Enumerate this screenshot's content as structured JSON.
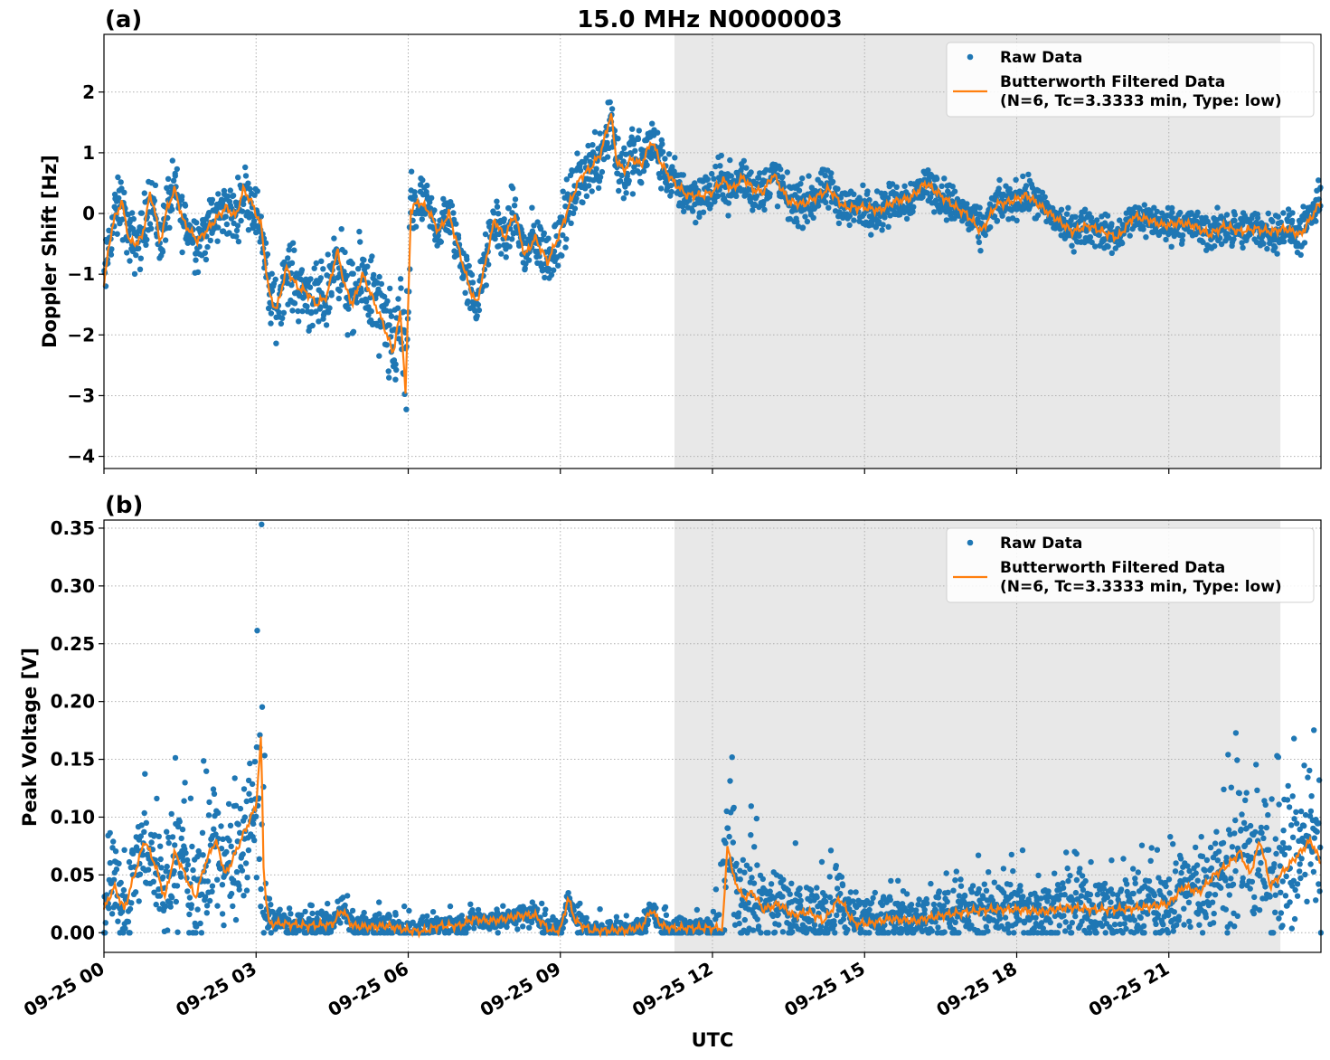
{
  "figure": {
    "suptitle": "15.0 MHz N0000003",
    "xlabel": "UTC",
    "x_tick_labels": [
      "09-25 00",
      "09-25 03",
      "09-25 06",
      "09-25 09",
      "09-25 12",
      "09-25 15",
      "09-25 18",
      "09-25 21"
    ],
    "shaded_interval_hours": [
      11.25,
      23.2
    ],
    "colors": {
      "raw": "#1f77b4",
      "filtered": "#ff7f0e",
      "shade": "#e8e8e8"
    }
  },
  "chart_data": [
    {
      "type": "line",
      "panel_label": "(a)",
      "ylabel": "Doppler Shift [Hz]",
      "x_unit": "hours after 09-25 00:00 UTC",
      "xlim": [
        0,
        24
      ],
      "ylim": [
        -4.2,
        2.95
      ],
      "yticks": [
        -4,
        -3,
        -2,
        -1,
        0,
        1,
        2
      ],
      "ytick_labels": [
        "−4",
        "−3",
        "−2",
        "−1",
        "0",
        "1",
        "2"
      ],
      "grid": true,
      "legend": {
        "location": "upper right",
        "raw_label": "Raw Data",
        "filtered_label_line1": "Butterworth Filtered Data",
        "filtered_label_line2": "(N=6, Tc=3.3333 min, Type: low)"
      },
      "series": [
        {
          "name": "Butterworth Filtered Data",
          "x": [
            0,
            0.1,
            0.2,
            0.35,
            0.5,
            0.6,
            0.75,
            0.9,
            1.0,
            1.1,
            1.25,
            1.4,
            1.55,
            1.7,
            1.85,
            2.0,
            2.2,
            2.4,
            2.6,
            2.75,
            2.9,
            3.1,
            3.25,
            3.4,
            3.6,
            3.8,
            4.0,
            4.2,
            4.4,
            4.6,
            4.75,
            4.9,
            5.1,
            5.3,
            5.5,
            5.7,
            5.85,
            5.95,
            6.05,
            6.2,
            6.4,
            6.6,
            6.8,
            7.0,
            7.2,
            7.35,
            7.5,
            7.7,
            7.9,
            8.1,
            8.3,
            8.5,
            8.75,
            9.0,
            9.2,
            9.4,
            9.6,
            9.8,
            10.0,
            10.1,
            10.25,
            10.4,
            10.6,
            10.8,
            11.0,
            11.25,
            11.5,
            11.8,
            12.0,
            12.2,
            12.4,
            12.6,
            12.8,
            13.0,
            13.2,
            13.5,
            13.8,
            14.1,
            14.3,
            14.6,
            15.0,
            15.3,
            15.6,
            15.9,
            16.2,
            16.5,
            16.8,
            17.0,
            17.3,
            17.6,
            17.9,
            18.2,
            18.5,
            18.8,
            19.1,
            19.4,
            19.7,
            20.0,
            20.3,
            20.6,
            20.9,
            21.2,
            21.5,
            21.8,
            22.1,
            22.4,
            22.7,
            23.0,
            23.3,
            23.6,
            24.0
          ],
          "values": [
            -1.2,
            -0.5,
            -0.1,
            0.2,
            -0.45,
            -0.5,
            -0.4,
            0.3,
            0.1,
            -0.5,
            0.1,
            0.4,
            -0.1,
            -0.3,
            -0.45,
            -0.3,
            -0.1,
            0.1,
            -0.05,
            0.4,
            0.2,
            -0.2,
            -1.3,
            -1.6,
            -0.9,
            -1.2,
            -1.3,
            -1.5,
            -1.35,
            -0.6,
            -1.2,
            -1.5,
            -1.0,
            -1.4,
            -1.8,
            -2.3,
            -1.6,
            -3.0,
            0.05,
            0.2,
            0.05,
            -0.3,
            0.0,
            -0.6,
            -1.2,
            -1.5,
            -0.9,
            -0.1,
            -0.4,
            0.0,
            -0.7,
            -0.4,
            -0.8,
            -0.3,
            0.2,
            0.6,
            0.75,
            1.0,
            1.65,
            0.9,
            0.7,
            0.9,
            0.8,
            1.2,
            0.8,
            0.5,
            0.3,
            0.3,
            0.35,
            0.55,
            0.4,
            0.6,
            0.4,
            0.35,
            0.65,
            0.2,
            0.15,
            0.3,
            0.4,
            0.1,
            0.1,
            0.05,
            0.2,
            0.25,
            0.5,
            0.3,
            0.1,
            0.0,
            -0.3,
            0.15,
            0.2,
            0.3,
            0.1,
            -0.1,
            -0.3,
            -0.2,
            -0.3,
            -0.4,
            -0.05,
            -0.1,
            -0.2,
            -0.15,
            -0.2,
            -0.35,
            -0.2,
            -0.3,
            -0.25,
            -0.3,
            -0.25,
            -0.35,
            0.2
          ]
        },
        {
          "name": "Raw Data",
          "spread_about_filtered": [
            [
              0,
              0.45
            ],
            [
              3,
              0.4
            ],
            [
              5.0,
              0.6
            ],
            [
              6.0,
              0.8
            ],
            [
              6.3,
              0.35
            ],
            [
              9.5,
              0.45
            ],
            [
              10.0,
              0.55
            ],
            [
              11.2,
              0.35
            ],
            [
              12.5,
              0.35
            ],
            [
              15,
              0.3
            ],
            [
              20,
              0.25
            ],
            [
              24,
              0.3
            ]
          ]
        }
      ]
    },
    {
      "type": "line",
      "panel_label": "(b)",
      "ylabel": "Peak Voltage [V]",
      "x_unit": "hours after 09-25 00:00 UTC",
      "xlim": [
        0,
        24
      ],
      "ylim": [
        -0.017,
        0.357
      ],
      "yticks": [
        0.0,
        0.05,
        0.1,
        0.15,
        0.2,
        0.25,
        0.3,
        0.35
      ],
      "ytick_labels": [
        "0.00",
        "0.05",
        "0.10",
        "0.15",
        "0.20",
        "0.25",
        "0.30",
        "0.35"
      ],
      "grid": true,
      "legend": {
        "location": "upper right",
        "raw_label": "Raw Data",
        "filtered_label_line1": "Butterworth Filtered Data",
        "filtered_label_line2": "(N=6, Tc=3.3333 min, Type: low)"
      },
      "series": [
        {
          "name": "Butterworth Filtered Data",
          "x": [
            0,
            0.2,
            0.4,
            0.6,
            0.8,
            1.0,
            1.2,
            1.4,
            1.6,
            1.8,
            2.0,
            2.2,
            2.4,
            2.6,
            2.8,
            3.0,
            3.1,
            3.15,
            3.25,
            3.5,
            4.0,
            4.5,
            4.7,
            4.9,
            5.2,
            5.6,
            6.0,
            6.3,
            6.6,
            7.0,
            7.3,
            7.6,
            7.9,
            8.2,
            8.5,
            8.8,
            9.0,
            9.15,
            9.3,
            9.6,
            10.0,
            10.3,
            10.6,
            10.8,
            11.0,
            11.2,
            11.5,
            11.8,
            12.2,
            12.3,
            12.4,
            12.6,
            12.8,
            13.0,
            13.3,
            13.6,
            13.9,
            14.2,
            14.5,
            14.8,
            15.1,
            15.5,
            16.0,
            16.5,
            17.0,
            17.5,
            18.0,
            18.5,
            19.0,
            19.5,
            20.0,
            20.5,
            21.0,
            21.3,
            21.6,
            21.9,
            22.2,
            22.4,
            22.6,
            22.8,
            23.0,
            23.2,
            23.4,
            23.6,
            23.8,
            24.0
          ],
          "values": [
            0.02,
            0.04,
            0.02,
            0.05,
            0.08,
            0.06,
            0.03,
            0.07,
            0.05,
            0.03,
            0.06,
            0.08,
            0.05,
            0.07,
            0.09,
            0.11,
            0.17,
            0.05,
            0.008,
            0.008,
            0.006,
            0.007,
            0.02,
            0.006,
            0.005,
            0.006,
            0.002,
            0.001,
            0.006,
            0.006,
            0.012,
            0.01,
            0.012,
            0.015,
            0.015,
            0.002,
            0.002,
            0.03,
            0.01,
            0.002,
            0.002,
            0.002,
            0.005,
            0.02,
            0.006,
            0.004,
            0.004,
            0.004,
            0.004,
            0.08,
            0.05,
            0.03,
            0.035,
            0.02,
            0.025,
            0.015,
            0.018,
            0.01,
            0.03,
            0.008,
            0.008,
            0.012,
            0.01,
            0.015,
            0.018,
            0.02,
            0.02,
            0.018,
            0.022,
            0.02,
            0.02,
            0.022,
            0.025,
            0.04,
            0.035,
            0.05,
            0.06,
            0.07,
            0.05,
            0.08,
            0.04,
            0.05,
            0.06,
            0.07,
            0.08,
            0.06
          ],
          "spread_about_filtered": [
            [
              0,
              0.03
            ],
            [
              2.9,
              0.06
            ],
            [
              3.15,
              0.13
            ],
            [
              3.2,
              0.01
            ],
            [
              11.9,
              0.008
            ],
            [
              12.2,
              0.06
            ],
            [
              13.0,
              0.035
            ],
            [
              15.0,
              0.02
            ],
            [
              21.0,
              0.03
            ],
            [
              23.0,
              0.06
            ],
            [
              24,
              0.05
            ]
          ]
        },
        {
          "name": "Raw Data"
        }
      ]
    }
  ]
}
